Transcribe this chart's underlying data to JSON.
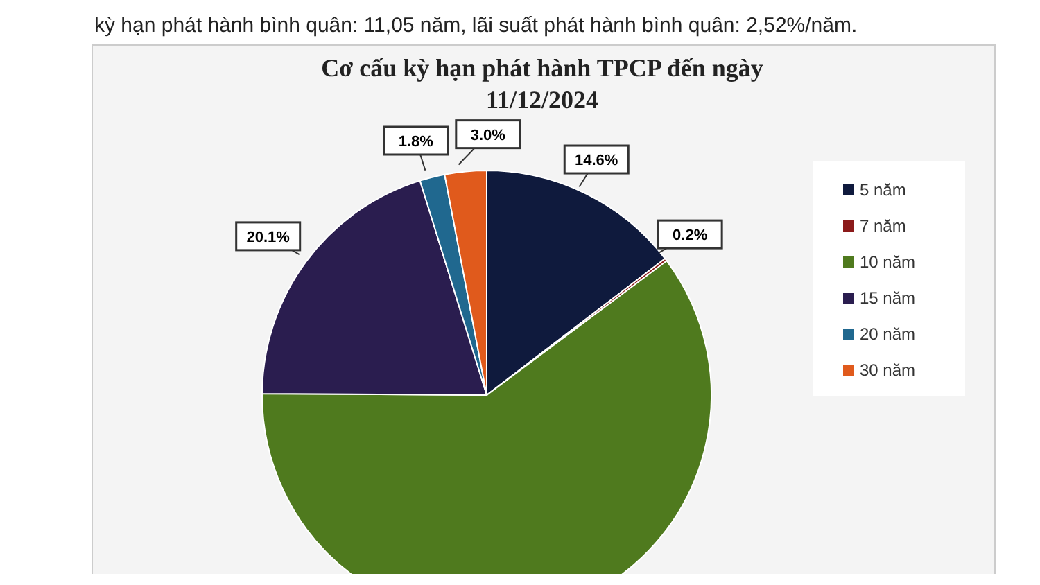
{
  "chart_data": {
    "type": "pie",
    "title": "Cơ cấu kỳ hạn phát hành TPCP đến ngày\n11/12/2024",
    "annotations": [
      "kỳ hạn phát hành bình quân: 11,05 năm, lãi suất phát hành bình quân: 2,52%/năm."
    ],
    "categories": [
      "5 năm",
      "7 năm",
      "10 năm",
      "15 năm",
      "20 năm",
      "30 năm"
    ],
    "values": [
      14.6,
      0.2,
      60.3,
      20.1,
      1.8,
      3.0
    ],
    "colors": [
      "#0f1a3d",
      "#8b1a1a",
      "#4f7a1e",
      "#2a1d4f",
      "#20688f",
      "#e05a1c"
    ],
    "value_labels": [
      "14.6%",
      "0.2%",
      null,
      "20.1%",
      "1.8%",
      "3.0%"
    ],
    "legend": "right"
  }
}
